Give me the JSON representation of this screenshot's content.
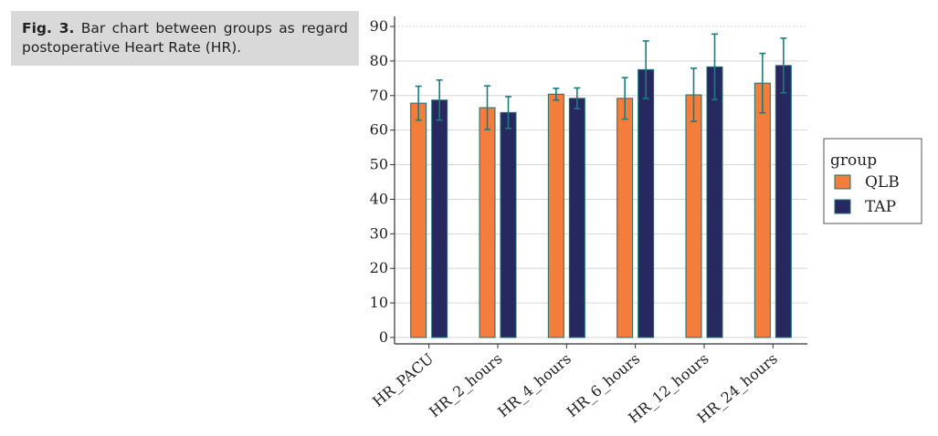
{
  "caption": {
    "prefix": "Fig. 3.",
    "text": " Bar chart between groups as regard postoperative Heart Rate (HR)."
  },
  "chart_data": {
    "type": "bar",
    "categories": [
      "HR_PACU",
      "HR_2_hours",
      "HR_4_hours",
      "HR_6_hours",
      "HR_12_hours",
      "HR_24_hours"
    ],
    "series": [
      {
        "name": "QLB",
        "color": "#f47c3c",
        "values": [
          67.8,
          66.5,
          70.4,
          69.2,
          70.2,
          73.6
        ],
        "err_low": [
          62.9,
          60.2,
          68.7,
          63.2,
          62.5,
          65.0
        ],
        "err_high": [
          72.7,
          72.8,
          72.1,
          75.2,
          77.9,
          82.2
        ]
      },
      {
        "name": "TAP",
        "color": "#27285f",
        "values": [
          68.7,
          65.1,
          69.2,
          77.5,
          78.3,
          78.7
        ],
        "err_low": [
          62.9,
          60.5,
          66.2,
          69.2,
          68.8,
          70.8
        ],
        "err_high": [
          74.5,
          69.7,
          72.2,
          85.8,
          87.8,
          86.6
        ]
      }
    ],
    "error_bar_color": "#1a7d7d",
    "ylim": [
      0,
      90
    ],
    "yticks": [
      0,
      10,
      20,
      30,
      40,
      50,
      60,
      70,
      80,
      90
    ],
    "grid": true,
    "legend": {
      "title": "group",
      "placement": "right"
    }
  }
}
